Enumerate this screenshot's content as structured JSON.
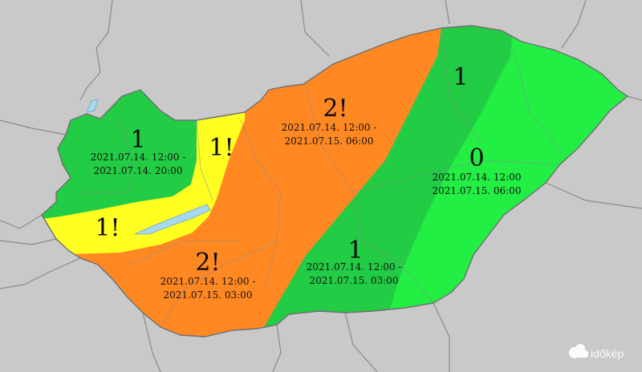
{
  "colors": {
    "background": "#c9c9c9",
    "level_0": "#22ee44",
    "level_1": "#22cc44",
    "level_1_warning": "#ffff22",
    "level_2_warning": "#ff8822",
    "lake": "#a8d8ee",
    "border": "#777777"
  },
  "regions": [
    {
      "id": "nw",
      "level": "1",
      "date_from": "2021.07.14. 12:00 -",
      "date_to": "2021.07.14. 20:00"
    },
    {
      "id": "north-yellow",
      "level": "1!",
      "date_from": "",
      "date_to": ""
    },
    {
      "id": "balaton-yellow",
      "level": "1!",
      "date_from": "",
      "date_to": ""
    },
    {
      "id": "center-north-orange",
      "level": "2!",
      "date_from": "2021.07.14. 12:00 -",
      "date_to": "2021.07.15. 06:00"
    },
    {
      "id": "south-orange",
      "level": "2!",
      "date_from": "2021.07.14. 12:00 -",
      "date_to": "2021.07.15. 03:00"
    },
    {
      "id": "ne-band",
      "level": "1",
      "date_from": "",
      "date_to": ""
    },
    {
      "id": "east",
      "level": "0",
      "date_from": "2021.07.14. 12:00",
      "date_to": "2021.07.15. 06:00"
    },
    {
      "id": "se-band",
      "level": "1",
      "date_from": "2021.07.14. 12:00 -",
      "date_to": "2021.07.15. 03:00"
    }
  ],
  "brand": {
    "name": "időkép",
    "icon": "cloud-logo-icon"
  }
}
